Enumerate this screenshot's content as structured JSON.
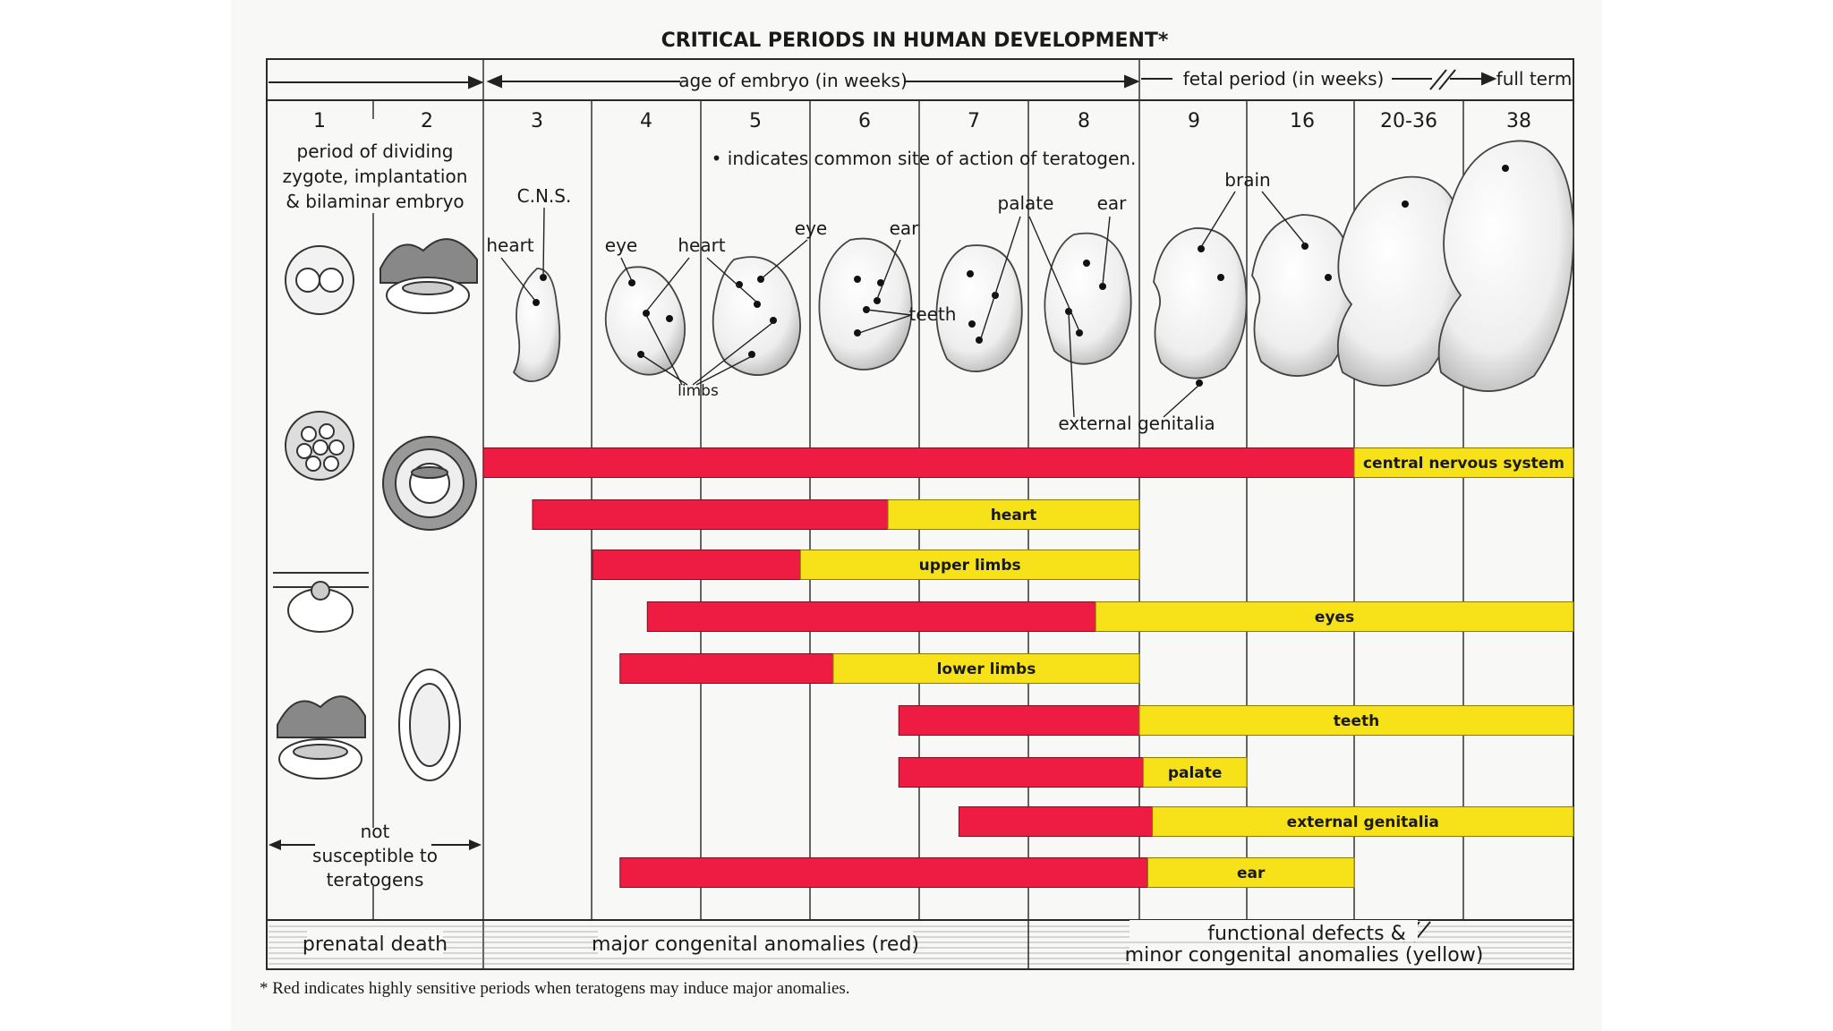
{
  "title": "CRITICAL PERIODS IN HUMAN DEVELOPMENT*",
  "header": {
    "embryo_age": "age of embryo (in weeks)",
    "fetal_period": "fetal period (in weeks)",
    "full_term": "full term"
  },
  "weeks": [
    "1",
    "2",
    "3",
    "4",
    "5",
    "6",
    "7",
    "8",
    "9",
    "16",
    "20-36",
    "38"
  ],
  "notes": {
    "period_line1": "period of dividing",
    "period_line2": "zygote, implantation",
    "period_line3": "& bilaminar embryo",
    "indicates": "• indicates common site of action of teratogen.",
    "not_susceptible_1": "not",
    "not_susceptible_2": "susceptible to",
    "not_susceptible_3": "teratogens"
  },
  "labels": {
    "cns": "C.N.S.",
    "heart_a": "heart",
    "eye_a": "eye",
    "heart_b": "heart",
    "eye_b": "eye",
    "ear_a": "ear",
    "teeth": "teeth",
    "palate": "palate",
    "ear_b": "ear",
    "brain": "brain",
    "limbs": "limbs",
    "external_genitalia": "external genitalia"
  },
  "colors": {
    "red": "#ee1b43",
    "yellow": "#f7e21a",
    "line": "#2a2a2a"
  },
  "chart_data": {
    "type": "bar",
    "categories": [
      "central nervous system",
      "heart",
      "upper limbs",
      "eyes",
      "lower limbs",
      "teeth",
      "palate",
      "external genitalia",
      "ear"
    ],
    "series": [
      {
        "name": "red",
        "start": [
          3,
          3.45,
          4.0,
          4.5,
          4.25,
          6.8,
          6.8,
          7.35,
          4.25
        ],
        "end": [
          20,
          6.7,
          5.9,
          8.6,
          6.2,
          9.0,
          9.25,
          9.85,
          9.55
        ]
      },
      {
        "name": "yellow",
        "start": [
          20,
          6.7,
          5.9,
          8.6,
          6.2,
          9.0,
          9.25,
          9.85,
          9.55
        ],
        "end": [
          38,
          9.0,
          9.0,
          38,
          9.0,
          38,
          16,
          38,
          20
        ]
      }
    ]
  },
  "footer": {
    "prenatal": "prenatal death",
    "major": "major congenital anomalies (red)",
    "functional_1": "functional defects &",
    "functional_2": "minor congenital anomalies (yellow)"
  },
  "footnote": "* Red indicates highly sensitive periods when teratogens may induce major anomalies."
}
